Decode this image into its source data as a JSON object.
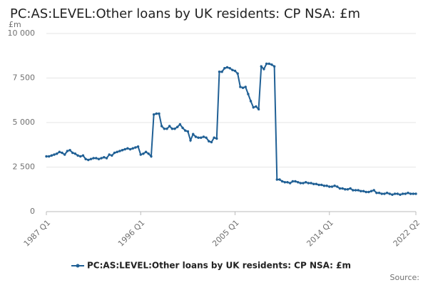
{
  "chart_data": {
    "type": "line",
    "title": "PC:AS:LEVEL:Other loans by UK residents: CP NSA: £m",
    "y_unit": "£m",
    "source": "Source:",
    "categories": [
      "1987 Q1",
      null,
      null,
      null,
      null,
      null,
      null,
      null,
      null,
      null,
      null,
      null,
      null,
      null,
      null,
      null,
      null,
      null,
      null,
      null,
      null,
      null,
      null,
      null,
      null,
      null,
      null,
      null,
      null,
      null,
      null,
      null,
      null,
      null,
      null,
      null,
      "1996 Q1",
      null,
      null,
      null,
      null,
      null,
      null,
      null,
      null,
      null,
      null,
      null,
      null,
      null,
      null,
      null,
      null,
      null,
      null,
      null,
      null,
      null,
      null,
      null,
      null,
      null,
      null,
      null,
      null,
      null,
      null,
      null,
      null,
      null,
      null,
      null,
      "2005 Q1",
      null,
      null,
      null,
      null,
      null,
      null,
      null,
      null,
      null,
      null,
      null,
      null,
      null,
      null,
      null,
      null,
      null,
      null,
      null,
      null,
      null,
      null,
      null,
      null,
      null,
      null,
      null,
      null,
      null,
      null,
      null,
      null,
      null,
      null,
      null,
      "2014 Q1",
      null,
      null,
      null,
      null,
      null,
      null,
      null,
      null,
      null,
      null,
      null,
      null,
      null,
      null,
      null,
      null,
      null,
      null,
      null,
      null,
      null,
      null,
      null,
      null,
      null,
      null,
      null,
      null,
      null,
      null,
      null,
      null,
      "2022 Q2"
    ],
    "series": [
      {
        "name": "PC:AS:LEVEL:Other loans by UK residents: CP NSA: £m",
        "color": "#206095",
        "values": [
          3100,
          3100,
          3150,
          3200,
          3250,
          3350,
          3300,
          3200,
          3400,
          3450,
          3300,
          3250,
          3150,
          3100,
          3150,
          2950,
          2900,
          2950,
          3000,
          3000,
          2950,
          3000,
          3050,
          3000,
          3200,
          3150,
          3300,
          3350,
          3400,
          3450,
          3500,
          3550,
          3500,
          3550,
          3600,
          3650,
          3200,
          3250,
          3350,
          3250,
          3100,
          5450,
          5500,
          5500,
          4800,
          4650,
          4650,
          4800,
          4650,
          4650,
          4750,
          4900,
          4700,
          4550,
          4500,
          4000,
          4350,
          4200,
          4150,
          4150,
          4200,
          4150,
          3950,
          3900,
          4150,
          4100,
          7850,
          7850,
          8050,
          8100,
          8050,
          7950,
          7900,
          7750,
          7000,
          6950,
          7000,
          6600,
          6200,
          5850,
          5900,
          5750,
          8150,
          8000,
          8300,
          8300,
          8250,
          8150,
          1800,
          1800,
          1700,
          1650,
          1650,
          1600,
          1700,
          1700,
          1650,
          1600,
          1600,
          1650,
          1600,
          1600,
          1550,
          1550,
          1500,
          1500,
          1450,
          1450,
          1400,
          1400,
          1450,
          1400,
          1300,
          1300,
          1250,
          1250,
          1300,
          1200,
          1200,
          1200,
          1150,
          1150,
          1100,
          1100,
          1150,
          1200,
          1050,
          1050,
          1000,
          1000,
          1050,
          1000,
          950,
          1000,
          1000,
          950,
          1000,
          1000,
          1050,
          1000,
          1000,
          1000
        ]
      }
    ],
    "ylim": [
      0,
      10000
    ],
    "yticks": [
      0,
      {
        "value": 2500,
        "label": "2 500"
      },
      {
        "value": 5000,
        "label": "5 000"
      },
      {
        "value": 7500,
        "label": "7 500"
      },
      {
        "value": 10000,
        "label": "10 000"
      }
    ],
    "grid": true
  }
}
